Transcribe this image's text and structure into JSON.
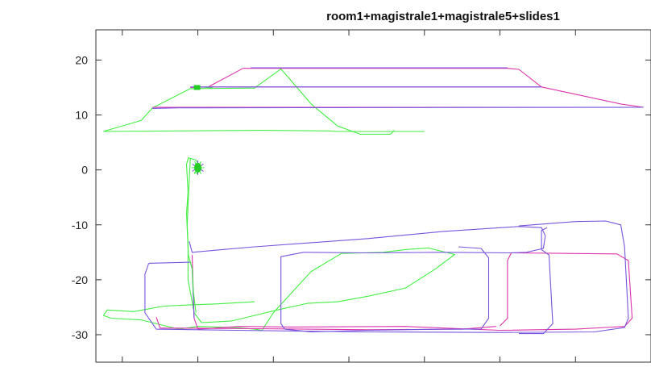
{
  "chart_data": {
    "type": "line",
    "title": "room1+magistrale1+magistrale5+slides1",
    "xlabel": "",
    "ylabel": "",
    "grid": false,
    "xlim": [
      -52,
      95
    ],
    "ylim": [
      -35,
      25.5
    ],
    "y_ticks": [
      -30,
      -20,
      -10,
      0,
      10,
      20
    ],
    "y_tick_labels": [
      "-30",
      "-20",
      "-10",
      "0",
      "10",
      "20"
    ],
    "x_ticks": [
      -45,
      -25,
      -5,
      15,
      35,
      55,
      75
    ],
    "x_tick_labels": [],
    "series": [
      {
        "color": "#44ee44",
        "segments": [
          [
            [
              -50,
              7
            ],
            [
              -8,
              7.2
            ],
            [
              10,
              7.1
            ],
            [
              12,
              7
            ],
            [
              35,
              7
            ]
          ],
          [
            [
              -50,
              7
            ],
            [
              -46,
              7.8
            ],
            [
              -40,
              9
            ],
            [
              -37,
              11.3
            ],
            [
              -27,
              14.8
            ],
            [
              -10,
              14.9
            ],
            [
              -3,
              18.4
            ],
            [
              5,
              12
            ],
            [
              12,
              8
            ],
            [
              18,
              6.5
            ],
            [
              26,
              6.5
            ],
            [
              27,
              7.2
            ]
          ],
          [
            [
              -26,
              15
            ],
            [
              -24,
              15.1
            ],
            [
              -21,
              14.9
            ]
          ],
          [
            [
              -26,
              -0.5
            ],
            [
              -25,
              -0.1
            ],
            [
              -25.5,
              0.4
            ],
            [
              -25,
              0.9
            ],
            [
              -24.8,
              0.2
            ],
            [
              -25.3,
              -0.8
            ]
          ],
          [
            [
              -24,
              0
            ],
            [
              -25.5,
              1.8
            ],
            [
              -27.5,
              2.2
            ],
            [
              -28,
              1
            ],
            [
              -27.6,
              -4
            ],
            [
              -28,
              -8
            ],
            [
              -27.6,
              -14
            ],
            [
              -27.6,
              -20
            ],
            [
              -26.5,
              -24
            ],
            [
              -26,
              -26
            ],
            [
              -24,
              -27.8
            ],
            [
              -16,
              -27.5
            ],
            [
              -10,
              -26.5
            ],
            [
              -4,
              -25.5
            ],
            [
              4,
              -24.3
            ],
            [
              12,
              -24
            ],
            [
              20,
              -23
            ],
            [
              30,
              -21.5
            ],
            [
              38,
              -18
            ],
            [
              43,
              -15.4
            ],
            [
              36,
              -14.2
            ],
            [
              30,
              -14.5
            ],
            [
              24,
              -15
            ],
            [
              13,
              -15.2
            ],
            [
              5,
              -18.5
            ],
            [
              -1,
              -23
            ],
            [
              -5,
              -26
            ],
            [
              -8,
              -29.2
            ],
            [
              -10,
              -29
            ],
            [
              -15,
              -28.7
            ],
            [
              -25,
              -28.5
            ],
            [
              -30,
              -29
            ],
            [
              -40,
              -27.3
            ],
            [
              -48,
              -27
            ],
            [
              -50,
              -26.5
            ],
            [
              -49,
              -25.5
            ],
            [
              -42,
              -25.8
            ],
            [
              -34,
              -24.8
            ],
            [
              -28,
              -24.6
            ],
            [
              -20,
              -24.4
            ],
            [
              -10,
              -24
            ]
          ]
        ]
      },
      {
        "color": "#dd33aa",
        "segments": [
          [
            [
              -37,
              11.4
            ],
            [
              93,
              11.4
            ]
          ],
          [
            [
              -27,
              15
            ],
            [
              -22,
              15.1
            ],
            [
              66,
              15.1
            ],
            [
              87,
              12
            ],
            [
              93,
              11.4
            ]
          ],
          [
            [
              -22,
              15.2
            ],
            [
              -13,
              18.5
            ],
            [
              57,
              18.5
            ],
            [
              60,
              18.3
            ],
            [
              66,
              15.1
            ]
          ],
          [
            [
              -26.5,
              -15.5
            ],
            [
              -26,
              -27
            ],
            [
              -25,
              -29
            ],
            [
              -14,
              -28.5
            ],
            [
              0,
              -28.6
            ],
            [
              30,
              -28.5
            ],
            [
              55,
              -29.2
            ],
            [
              75,
              -29
            ],
            [
              88,
              -28.5
            ],
            [
              90,
              -27
            ],
            [
              89,
              -16.5
            ],
            [
              86,
              -15.3
            ],
            [
              73,
              -15.2
            ],
            [
              58,
              -15.1
            ],
            [
              57,
              -16.5
            ],
            [
              57,
              -27
            ],
            [
              55,
              -28.4
            ]
          ],
          [
            [
              -36,
              -26.8
            ],
            [
              -35,
              -28.8
            ],
            [
              -30,
              -28.8
            ],
            [
              -10,
              -28.9
            ],
            [
              20,
              -29.1
            ],
            [
              45,
              -29
            ],
            [
              54,
              -28.5
            ]
          ]
        ]
      },
      {
        "color": "#7755dd",
        "segments": [
          [
            [
              -37,
              11.2
            ],
            [
              -30,
              11.3
            ],
            [
              93,
              11.4
            ]
          ],
          [
            [
              -27,
              15.1
            ],
            [
              66,
              15.1
            ]
          ],
          [
            [
              -11,
              18.6
            ],
            [
              57,
              18.6
            ]
          ],
          [
            [
              -27.3,
              -13
            ],
            [
              -26.5,
              -15
            ],
            [
              -20,
              -14.6
            ],
            [
              -10,
              -14
            ],
            [
              20,
              -12.5
            ],
            [
              40,
              -11.2
            ],
            [
              60,
              -10.3
            ],
            [
              66,
              -10.5
            ],
            [
              67,
              -12
            ],
            [
              66.5,
              -14.3
            ],
            [
              62,
              -15
            ],
            [
              58,
              -15.1
            ],
            [
              40,
              -15
            ],
            [
              20,
              -15.1
            ],
            [
              3,
              -15
            ],
            [
              -3,
              -15.8
            ],
            [
              -3,
              -28
            ],
            [
              -2,
              -29
            ],
            [
              5,
              -29.5
            ],
            [
              20,
              -29.2
            ],
            [
              40,
              -29
            ],
            [
              50,
              -29
            ],
            [
              52,
              -27
            ],
            [
              52,
              -16
            ],
            [
              50,
              -14.3
            ],
            [
              44,
              -14
            ]
          ],
          [
            [
              -38,
              -17
            ],
            [
              -27,
              -16.8
            ],
            [
              -26.5,
              -18
            ],
            [
              -26,
              -27
            ]
          ],
          [
            [
              -38,
              -17
            ],
            [
              -39,
              -19
            ],
            [
              -39,
              -26
            ],
            [
              -36,
              -29
            ],
            [
              -15,
              -29.2
            ],
            [
              20,
              -29.5
            ],
            [
              55,
              -29.6
            ],
            [
              80,
              -29.5
            ],
            [
              88,
              -28.7
            ],
            [
              89,
              -27
            ],
            [
              88,
              -14
            ],
            [
              87,
              -10
            ],
            [
              83,
              -9.3
            ],
            [
              75,
              -9.4
            ],
            [
              60,
              -10.2
            ]
          ],
          [
            [
              67.5,
              -10.5
            ],
            [
              66,
              -11
            ],
            [
              66,
              -14.5
            ],
            [
              68,
              -15.5
            ],
            [
              69,
              -28
            ],
            [
              66.5,
              -29.8
            ],
            [
              60,
              -29.8
            ]
          ]
        ]
      },
      {
        "color": "#44ee44",
        "segments": [
          [
            [
              -27,
              2
            ],
            [
              -27.5,
              -5
            ],
            [
              -27.8,
              -10
            ],
            [
              -27.5,
              -15.5
            ],
            [
              -26.5,
              -18
            ],
            [
              -26.2,
              -22
            ],
            [
              -25.5,
              -26
            ]
          ]
        ]
      }
    ],
    "markers": [
      {
        "label": "",
        "x": -25.2,
        "y": 15,
        "color": "#22cc22",
        "shape": "square"
      },
      {
        "label": "",
        "x": -25,
        "y": 0.4,
        "color": "#22cc22",
        "shape": "star"
      }
    ]
  }
}
